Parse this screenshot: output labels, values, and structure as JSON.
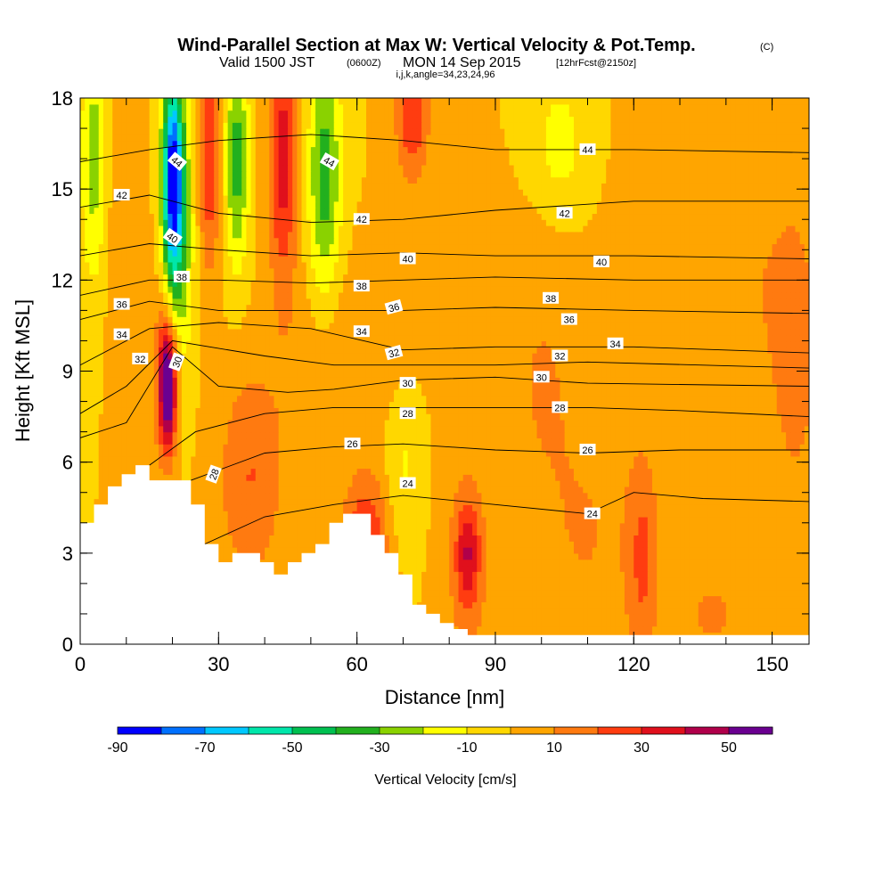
{
  "figure": {
    "title_main": "Wind-Parallel Section at Max W: Vertical Velocity & Pot.Temp.",
    "title_copyright": "(C)",
    "subtitle_part1": "Valid 1500 JST",
    "subtitle_utc": "(0600Z)",
    "subtitle_part2": "MON 14 Sep 2015",
    "subtitle_fcst": "[12hrFcst@2150z]",
    "subtitle_indices": "i,j,k,angle=34,23,24,96"
  },
  "chart_data": {
    "type": "heatmap",
    "xlabel": "Distance [nm]",
    "ylabel": "Height [Kft MSL]",
    "xlim": [
      0,
      158
    ],
    "ylim": [
      0,
      18
    ],
    "x_ticks": [
      0,
      30,
      60,
      90,
      120,
      150
    ],
    "x_tick_labels": [
      "0",
      "30",
      "60",
      "90",
      "120",
      "150"
    ],
    "y_ticks": [
      0,
      3,
      6,
      9,
      12,
      15,
      18
    ],
    "y_tick_labels": [
      "0",
      "3",
      "6",
      "9",
      "12",
      "15",
      "18"
    ],
    "grid": false,
    "colorbar": {
      "title": "Vertical Velocity [cm/s]",
      "bounds": [
        -90,
        60
      ],
      "step": 10,
      "tick_values": [
        -90,
        -70,
        -50,
        -30,
        -10,
        10,
        30,
        50
      ],
      "tick_labels": [
        "-90",
        "-70",
        "-50",
        "-30",
        "-10",
        "10",
        "30",
        "50"
      ],
      "colors": [
        "#0000ff",
        "#0070ff",
        "#00c8ff",
        "#00e6aa",
        "#00c050",
        "#22b01e",
        "#8ad200",
        "#ffff00",
        "#ffd700",
        "#ffa500",
        "#ff7a10",
        "#ff3c10",
        "#e0101c",
        "#b0004a",
        "#6a0090"
      ]
    },
    "background_w_cms": 0,
    "w_features": [
      {
        "x": 19,
        "y": 8.5,
        "sx": 1.3,
        "sy": 1.4,
        "w": 55
      },
      {
        "x": 19,
        "y": 9.2,
        "sx": 2.2,
        "sy": 2.2,
        "w": 25
      },
      {
        "x": 20,
        "y": 15.5,
        "sx": 1.5,
        "sy": 2.2,
        "w": -65
      },
      {
        "x": 21,
        "y": 13.5,
        "sx": 2.2,
        "sy": 3.5,
        "w": -40
      },
      {
        "x": 34,
        "y": 16,
        "sx": 1.8,
        "sy": 2.5,
        "w": -35
      },
      {
        "x": 53,
        "y": 15.5,
        "sx": 2.5,
        "sy": 3.0,
        "w": -35
      },
      {
        "x": 28,
        "y": 16,
        "sx": 1.5,
        "sy": 2.5,
        "w": 30
      },
      {
        "x": 44,
        "y": 16,
        "sx": 2.2,
        "sy": 3.0,
        "w": 35
      },
      {
        "x": 72,
        "y": 17.5,
        "sx": 2.5,
        "sy": 1.5,
        "w": 30
      },
      {
        "x": 3,
        "y": 16,
        "sx": 2.0,
        "sy": 3.0,
        "w": -25
      },
      {
        "x": 37,
        "y": 5.5,
        "sx": 5.0,
        "sy": 2.5,
        "w": 20
      },
      {
        "x": 62,
        "y": 3.5,
        "sx": 3.5,
        "sy": 1.5,
        "w": 30
      },
      {
        "x": 84,
        "y": 3.0,
        "sx": 1.8,
        "sy": 1.2,
        "w": 30
      },
      {
        "x": 84,
        "y": 2.5,
        "sx": 4.0,
        "sy": 3.0,
        "w": 12
      },
      {
        "x": 122,
        "y": 2.8,
        "sx": 2.5,
        "sy": 2.5,
        "w": 20
      },
      {
        "x": 110,
        "y": 3.5,
        "sx": 8.0,
        "sy": 3.0,
        "w": 10
      },
      {
        "x": 100,
        "y": 9.0,
        "sx": 6.0,
        "sy": 3.0,
        "w": 10
      },
      {
        "x": 58,
        "y": 9.5,
        "sx": 10.0,
        "sy": 2.0,
        "w": 10
      },
      {
        "x": 137,
        "y": 1.0,
        "sx": 5.0,
        "sy": 1.0,
        "w": 12
      },
      {
        "x": 104,
        "y": 16.5,
        "sx": 4.0,
        "sy": 1.5,
        "w": -15
      },
      {
        "x": 70,
        "y": 6.0,
        "sx": 3.0,
        "sy": 2.0,
        "w": -12
      },
      {
        "x": 10,
        "y": 13,
        "sx": 3.0,
        "sy": 3.0,
        "w": 10
      },
      {
        "x": 140,
        "y": 12,
        "sx": 12.0,
        "sy": 3.0,
        "w": 10
      },
      {
        "x": 155,
        "y": 9.0,
        "sx": 4.0,
        "sy": 4.0,
        "w": 12
      }
    ],
    "terrain_profile": {
      "x": [
        0,
        3,
        3,
        6,
        6,
        9,
        9,
        12,
        12,
        15,
        15,
        24,
        24,
        27,
        27,
        30,
        30,
        33,
        33,
        39,
        39,
        42,
        42,
        45,
        45,
        48,
        48,
        51,
        51,
        54,
        54,
        57,
        57,
        63,
        63,
        66,
        66,
        69,
        69,
        72,
        72,
        75,
        75,
        78,
        78,
        81,
        81,
        84,
        84,
        87,
        87,
        158
      ],
      "y": [
        4.0,
        4.0,
        4.6,
        4.6,
        5.2,
        5.2,
        5.6,
        5.6,
        5.9,
        5.9,
        5.4,
        5.4,
        4.6,
        4.6,
        3.3,
        3.3,
        2.7,
        2.7,
        3.0,
        3.0,
        2.7,
        2.7,
        2.3,
        2.3,
        2.7,
        2.7,
        3.0,
        3.0,
        3.3,
        3.3,
        4.0,
        4.0,
        4.3,
        4.3,
        3.6,
        3.6,
        3.0,
        3.0,
        2.3,
        2.3,
        1.3,
        1.3,
        1.0,
        1.0,
        0.7,
        0.7,
        0.5,
        0.5,
        0.3,
        0.3,
        0.3,
        0.3
      ]
    },
    "theta_contours": [
      {
        "label": "24",
        "points": [
          [
            27,
            3.3
          ],
          [
            40,
            4.2
          ],
          [
            55,
            4.6
          ],
          [
            70,
            4.9
          ],
          [
            90,
            4.6
          ],
          [
            110,
            4.3
          ],
          [
            120,
            5.0
          ],
          [
            135,
            4.8
          ],
          [
            158,
            4.7
          ]
        ]
      },
      {
        "label": "26",
        "points": [
          [
            24,
            5.4
          ],
          [
            40,
            6.3
          ],
          [
            55,
            6.5
          ],
          [
            70,
            6.6
          ],
          [
            90,
            6.4
          ],
          [
            110,
            6.3
          ],
          [
            130,
            6.4
          ],
          [
            158,
            6.4
          ]
        ]
      },
      {
        "label": "28",
        "points": [
          [
            15,
            5.9
          ],
          [
            25,
            7.0
          ],
          [
            40,
            7.6
          ],
          [
            55,
            7.8
          ],
          [
            70,
            7.8
          ],
          [
            90,
            7.8
          ],
          [
            110,
            7.8
          ],
          [
            130,
            7.7
          ],
          [
            158,
            7.5
          ]
        ]
      },
      {
        "label": "30",
        "points": [
          [
            0,
            6.8
          ],
          [
            10,
            7.3
          ],
          [
            20,
            9.8
          ],
          [
            30,
            8.5
          ],
          [
            45,
            8.3
          ],
          [
            55,
            8.4
          ],
          [
            70,
            8.7
          ],
          [
            90,
            8.8
          ],
          [
            110,
            8.6
          ],
          [
            158,
            8.5
          ]
        ]
      },
      {
        "label": "32",
        "points": [
          [
            0,
            7.6
          ],
          [
            10,
            8.5
          ],
          [
            20,
            10.0
          ],
          [
            40,
            9.5
          ],
          [
            55,
            9.2
          ],
          [
            70,
            9.2
          ],
          [
            90,
            9.2
          ],
          [
            110,
            9.3
          ],
          [
            158,
            9.1
          ]
        ]
      },
      {
        "label": "34",
        "points": [
          [
            0,
            9.2
          ],
          [
            15,
            10.4
          ],
          [
            30,
            10.6
          ],
          [
            50,
            10.4
          ],
          [
            70,
            9.7
          ],
          [
            90,
            9.8
          ],
          [
            120,
            9.8
          ],
          [
            158,
            9.6
          ]
        ]
      },
      {
        "label": "36",
        "points": [
          [
            0,
            10.7
          ],
          [
            15,
            11.3
          ],
          [
            30,
            11.0
          ],
          [
            50,
            11.0
          ],
          [
            70,
            11.0
          ],
          [
            90,
            11.1
          ],
          [
            120,
            11.0
          ],
          [
            158,
            10.9
          ]
        ]
      },
      {
        "label": "38",
        "points": [
          [
            0,
            11.5
          ],
          [
            15,
            12.0
          ],
          [
            30,
            12.0
          ],
          [
            50,
            11.9
          ],
          [
            70,
            12.0
          ],
          [
            90,
            12.1
          ],
          [
            120,
            12.0
          ],
          [
            158,
            12.0
          ]
        ]
      },
      {
        "label": "40",
        "points": [
          [
            0,
            12.8
          ],
          [
            15,
            13.2
          ],
          [
            30,
            13.0
          ],
          [
            50,
            12.8
          ],
          [
            70,
            12.9
          ],
          [
            90,
            12.8
          ],
          [
            120,
            12.8
          ],
          [
            158,
            12.7
          ]
        ]
      },
      {
        "label": "42",
        "points": [
          [
            0,
            14.4
          ],
          [
            15,
            14.8
          ],
          [
            30,
            14.2
          ],
          [
            50,
            13.9
          ],
          [
            70,
            14.0
          ],
          [
            90,
            14.3
          ],
          [
            120,
            14.6
          ],
          [
            158,
            14.6
          ]
        ]
      },
      {
        "label": "44",
        "points": [
          [
            0,
            15.9
          ],
          [
            15,
            16.3
          ],
          [
            30,
            16.6
          ],
          [
            50,
            16.8
          ],
          [
            70,
            16.6
          ],
          [
            90,
            16.3
          ],
          [
            120,
            16.3
          ],
          [
            158,
            16.2
          ]
        ]
      }
    ],
    "contour_labels": [
      {
        "text": "44",
        "x": 21,
        "y": 15.9,
        "angle": 40
      },
      {
        "text": "44",
        "x": 54,
        "y": 15.9,
        "angle": 30
      },
      {
        "text": "44",
        "x": 110,
        "y": 16.3,
        "angle": 0
      },
      {
        "text": "42",
        "x": 9,
        "y": 14.8,
        "angle": 0
      },
      {
        "text": "42",
        "x": 61,
        "y": 14.0,
        "angle": 0
      },
      {
        "text": "42",
        "x": 105,
        "y": 14.2,
        "angle": 0
      },
      {
        "text": "40",
        "x": 20,
        "y": 13.4,
        "angle": 35
      },
      {
        "text": "40",
        "x": 71,
        "y": 12.7,
        "angle": 0
      },
      {
        "text": "40",
        "x": 113,
        "y": 12.6,
        "angle": 0
      },
      {
        "text": "38",
        "x": 22,
        "y": 12.1,
        "angle": 0
      },
      {
        "text": "38",
        "x": 61,
        "y": 11.8,
        "angle": 0
      },
      {
        "text": "38",
        "x": 102,
        "y": 11.4,
        "angle": 0
      },
      {
        "text": "36",
        "x": 9,
        "y": 11.2,
        "angle": 0
      },
      {
        "text": "36",
        "x": 68,
        "y": 11.1,
        "angle": -15
      },
      {
        "text": "36",
        "x": 106,
        "y": 10.7,
        "angle": 0
      },
      {
        "text": "34",
        "x": 9,
        "y": 10.2,
        "angle": 0
      },
      {
        "text": "34",
        "x": 61,
        "y": 10.3,
        "angle": 0
      },
      {
        "text": "34",
        "x": 116,
        "y": 9.9,
        "angle": 0
      },
      {
        "text": "32",
        "x": 13,
        "y": 9.4,
        "angle": 0
      },
      {
        "text": "32",
        "x": 68,
        "y": 9.6,
        "angle": -15
      },
      {
        "text": "32",
        "x": 104,
        "y": 9.5,
        "angle": 0
      },
      {
        "text": "30",
        "x": 21,
        "y": 9.3,
        "angle": -70
      },
      {
        "text": "30",
        "x": 71,
        "y": 8.6,
        "angle": 0
      },
      {
        "text": "30",
        "x": 100,
        "y": 8.8,
        "angle": 0
      },
      {
        "text": "28",
        "x": 71,
        "y": 7.6,
        "angle": 0
      },
      {
        "text": "28",
        "x": 104,
        "y": 7.8,
        "angle": 0
      },
      {
        "text": "28",
        "x": 29,
        "y": 5.6,
        "angle": -70
      },
      {
        "text": "26",
        "x": 59,
        "y": 6.6,
        "angle": 0
      },
      {
        "text": "26",
        "x": 110,
        "y": 6.4,
        "angle": 0
      },
      {
        "text": "24",
        "x": 71,
        "y": 5.3,
        "angle": 0
      },
      {
        "text": "24",
        "x": 111,
        "y": 4.3,
        "angle": 0
      }
    ]
  }
}
